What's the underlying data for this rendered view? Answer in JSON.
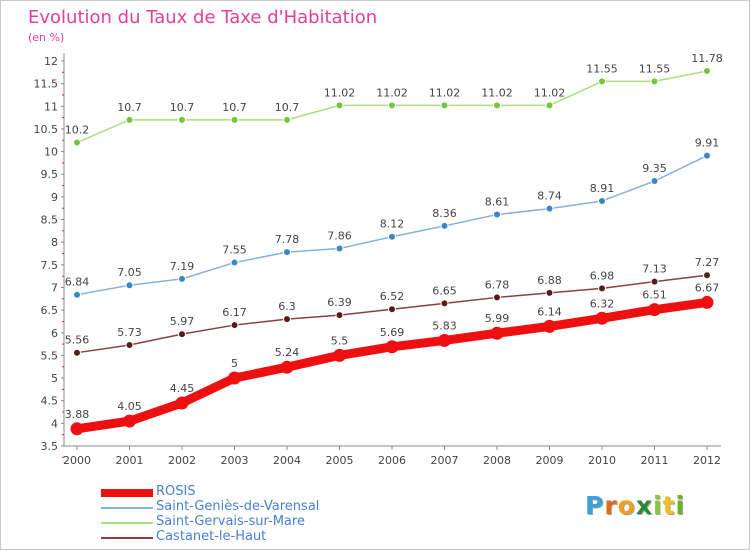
{
  "chart_data": {
    "type": "line",
    "title": "Evolution du Taux de Taxe d'Habitation",
    "subtitle": "(en %)",
    "xlabel": "",
    "ylabel": "",
    "x": [
      "2000",
      "2001",
      "2002",
      "2003",
      "2004",
      "2005",
      "2006",
      "2007",
      "2008",
      "2009",
      "2010",
      "2011",
      "2012"
    ],
    "ylim": [
      3.5,
      12.2
    ],
    "yticks": [
      "3.5",
      "4",
      "4.5",
      "5",
      "5.5",
      "6",
      "6.5",
      "7",
      "7.5",
      "8",
      "8.5",
      "9",
      "9.5",
      "10",
      "10.5",
      "11",
      "11.5",
      "12"
    ],
    "grid": false,
    "legend_position": "bottom-left",
    "series": [
      {
        "name": "ROSIS",
        "color": "#ee1010",
        "marker": "#ee1010",
        "emphasis": true,
        "values": [
          3.88,
          4.05,
          4.45,
          5,
          5.24,
          5.5,
          5.69,
          5.83,
          5.99,
          6.14,
          6.32,
          6.51,
          6.67
        ],
        "labels": [
          "3.88",
          "4.05",
          "4.45",
          "5",
          "5.24",
          "5.5",
          "5.69",
          "5.83",
          "5.99",
          "6.14",
          "6.32",
          "6.51",
          "6.67"
        ]
      },
      {
        "name": "Saint-Geniès-de-Varensal",
        "color": "#8ab0dc",
        "marker": "#3a86c6",
        "emphasis": false,
        "values": [
          6.84,
          7.05,
          7.19,
          7.55,
          7.78,
          7.86,
          8.12,
          8.36,
          8.61,
          8.74,
          8.91,
          9.35,
          9.91
        ],
        "labels": [
          "6.84",
          "7.05",
          "7.19",
          "7.55",
          "7.78",
          "7.86",
          "8.12",
          "8.36",
          "8.61",
          "8.74",
          "8.91",
          "9.35",
          "9.91"
        ]
      },
      {
        "name": "Saint-Gervais-sur-Mare",
        "color": "#a8e07a",
        "marker": "#74c63a",
        "emphasis": false,
        "values": [
          10.2,
          10.7,
          10.7,
          10.7,
          10.7,
          11.02,
          11.02,
          11.02,
          11.02,
          11.02,
          11.55,
          11.55,
          11.78
        ],
        "labels": [
          "10.2",
          "10.7",
          "10.7",
          "10.7",
          "10.7",
          "11.02",
          "11.02",
          "11.02",
          "11.02",
          "11.02",
          "11.55",
          "11.55",
          "11.78"
        ]
      },
      {
        "name": "Castanet-le-Haut",
        "color": "#8a4040",
        "marker": "#5a1a1a",
        "emphasis": false,
        "values": [
          5.56,
          5.73,
          5.97,
          6.17,
          6.3,
          6.39,
          6.52,
          6.65,
          6.78,
          6.88,
          6.98,
          7.13,
          7.27
        ],
        "labels": [
          "5.56",
          "5.73",
          "5.97",
          "6.17",
          "6.3",
          "6.39",
          "6.52",
          "6.65",
          "6.78",
          "6.88",
          "6.98",
          "7.13",
          "7.27"
        ]
      }
    ]
  },
  "logo": {
    "letters": [
      "P",
      "r",
      "o",
      "x",
      "i",
      "t",
      "i"
    ],
    "colors": [
      "#3aa0d8",
      "#e06a20",
      "#f0a020",
      "#2a8a3a",
      "#8ac63a",
      "#f0c020",
      "#6ab020"
    ]
  },
  "colors": {
    "accent": "#e0409a",
    "axis": "#777777",
    "tick_text": "#444444"
  }
}
